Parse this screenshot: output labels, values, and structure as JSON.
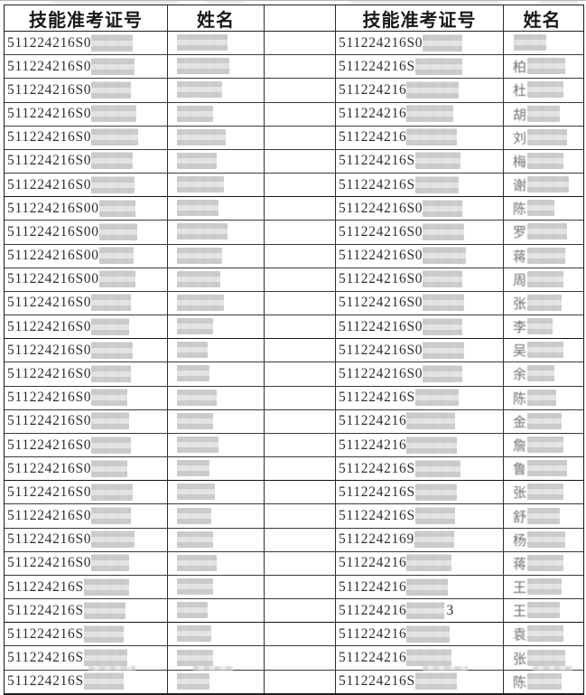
{
  "document": {
    "type": "scanned-exam-roster-table",
    "background_color": "#fdfdfc",
    "grid_color": "#2e2e2e",
    "text_color": "#2d2d2d",
    "censor_block_color": "#d6d6d6"
  },
  "table": {
    "headers": [
      "技能准考证号",
      "姓名",
      "",
      "技能准考证号",
      "姓名"
    ],
    "rows": [
      {
        "id1": "511224216S0",
        "m_id1": 46,
        "m_n1": 56,
        "id2": "511224216S0",
        "suf2": "",
        "m_id2": 44,
        "n2": "",
        "m_n2": 36
      },
      {
        "id1": "511224216S0",
        "m_id1": 48,
        "m_n1": 58,
        "id2": "511224216S",
        "suf2": "",
        "m_id2": 52,
        "n2": "柏",
        "m_n2": 42
      },
      {
        "id1": "511224216S0",
        "m_id1": 44,
        "m_n1": 50,
        "id2": "511224216",
        "suf2": "",
        "m_id2": 58,
        "n2": "杜",
        "m_n2": 40
      },
      {
        "id1": "511224216S0",
        "m_id1": 50,
        "m_n1": 40,
        "id2": "511224216",
        "suf2": "",
        "m_id2": 52,
        "n2": "胡",
        "m_n2": 36
      },
      {
        "id1": "511224216S0",
        "m_id1": 52,
        "m_n1": 54,
        "id2": "511224216",
        "suf2": "",
        "m_id2": 56,
        "n2": "刘",
        "m_n2": 44
      },
      {
        "id1": "511224216S0",
        "m_id1": 46,
        "m_n1": 44,
        "id2": "511224216S",
        "suf2": "",
        "m_id2": 50,
        "n2": "梅",
        "m_n2": 40
      },
      {
        "id1": "511224216S0",
        "m_id1": 48,
        "m_n1": 52,
        "id2": "511224216S",
        "suf2": "",
        "m_id2": 48,
        "n2": "谢",
        "m_n2": 46
      },
      {
        "id1": "511224216S00",
        "m_id1": 40,
        "m_n1": 46,
        "id2": "511224216S0",
        "suf2": "",
        "m_id2": 44,
        "n2": "陈",
        "m_n2": 30
      },
      {
        "id1": "511224216S00",
        "m_id1": 42,
        "m_n1": 56,
        "id2": "511224216S0",
        "suf2": "",
        "m_id2": 46,
        "n2": "罗",
        "m_n2": 44
      },
      {
        "id1": "511224216S00",
        "m_id1": 38,
        "m_n1": 50,
        "id2": "511224216S0",
        "suf2": "",
        "m_id2": 48,
        "n2": "蒋",
        "m_n2": 42
      },
      {
        "id1": "511224216S00",
        "m_id1": 40,
        "m_n1": 48,
        "id2": "511224216S0",
        "suf2": "",
        "m_id2": 44,
        "n2": "周",
        "m_n2": 40
      },
      {
        "id1": "511224216S0",
        "m_id1": 44,
        "m_n1": 52,
        "id2": "511224216S0",
        "suf2": "",
        "m_id2": 46,
        "n2": "张",
        "m_n2": 38
      },
      {
        "id1": "511224216S0",
        "m_id1": 42,
        "m_n1": 40,
        "id2": "511224216S0",
        "suf2": "",
        "m_id2": 44,
        "n2": "李",
        "m_n2": 28
      },
      {
        "id1": "511224216S0",
        "m_id1": 46,
        "m_n1": 34,
        "id2": "511224216S0",
        "suf2": "",
        "m_id2": 46,
        "n2": "吴",
        "m_n2": 40
      },
      {
        "id1": "511224216S0",
        "m_id1": 44,
        "m_n1": 36,
        "id2": "511224216S0",
        "suf2": "",
        "m_id2": 44,
        "n2": "余",
        "m_n2": 30
      },
      {
        "id1": "511224216S0",
        "m_id1": 40,
        "m_n1": 44,
        "id2": "511224216S",
        "suf2": "",
        "m_id2": 48,
        "n2": "陈",
        "m_n2": 32
      },
      {
        "id1": "511224216S0",
        "m_id1": 42,
        "m_n1": 40,
        "id2": "511224216",
        "suf2": "",
        "m_id2": 54,
        "n2": "金",
        "m_n2": 38
      },
      {
        "id1": "511224216S0",
        "m_id1": 44,
        "m_n1": 46,
        "id2": "511224216",
        "suf2": "",
        "m_id2": 56,
        "n2": "詹",
        "m_n2": 40
      },
      {
        "id1": "511224216S0",
        "m_id1": 40,
        "m_n1": 36,
        "id2": "511224216S",
        "suf2": "",
        "m_id2": 50,
        "n2": "鲁",
        "m_n2": 44
      },
      {
        "id1": "511224216S0",
        "m_id1": 46,
        "m_n1": 42,
        "id2": "511224216S",
        "suf2": "",
        "m_id2": 46,
        "n2": "张",
        "m_n2": 40
      },
      {
        "id1": "511224216S0",
        "m_id1": 44,
        "m_n1": 38,
        "id2": "511224216S",
        "suf2": "",
        "m_id2": 44,
        "n2": "舒",
        "m_n2": 36
      },
      {
        "id1": "511224216S0",
        "m_id1": 48,
        "m_n1": 40,
        "id2": "5112242169",
        "suf2": "",
        "m_id2": 44,
        "n2": "杨",
        "m_n2": 42
      },
      {
        "id1": "511224216S0",
        "m_id1": 42,
        "m_n1": 44,
        "id2": "511224216",
        "suf2": "",
        "m_id2": 50,
        "n2": "蒋",
        "m_n2": 40
      },
      {
        "id1": "511224216S",
        "m_id1": 50,
        "m_n1": 40,
        "id2": "511224216",
        "suf2": "",
        "m_id2": 46,
        "n2": "王",
        "m_n2": 38
      },
      {
        "id1": "511224216S",
        "m_id1": 46,
        "m_n1": 34,
        "id2": "511224216",
        "suf2": "3",
        "m_id2": 42,
        "n2": "王",
        "m_n2": 36
      },
      {
        "id1": "511224216S",
        "m_id1": 44,
        "m_n1": 38,
        "id2": "511224216",
        "suf2": "",
        "m_id2": 48,
        "n2": "袁",
        "m_n2": 40
      },
      {
        "id1": "511224216S",
        "m_id1": 48,
        "m_n1": 40,
        "id2": "511224216",
        "suf2": "",
        "m_id2": 50,
        "n2": "张",
        "m_n2": 42
      },
      {
        "id1": "511224216S",
        "m_id1": 44,
        "m_n1": 36,
        "id2": "511224216S",
        "suf2": "",
        "m_id2": 46,
        "n2": "陈",
        "m_n2": 38
      }
    ],
    "thick_border_after_rows": [
      7,
      13,
      19,
      25
    ]
  }
}
